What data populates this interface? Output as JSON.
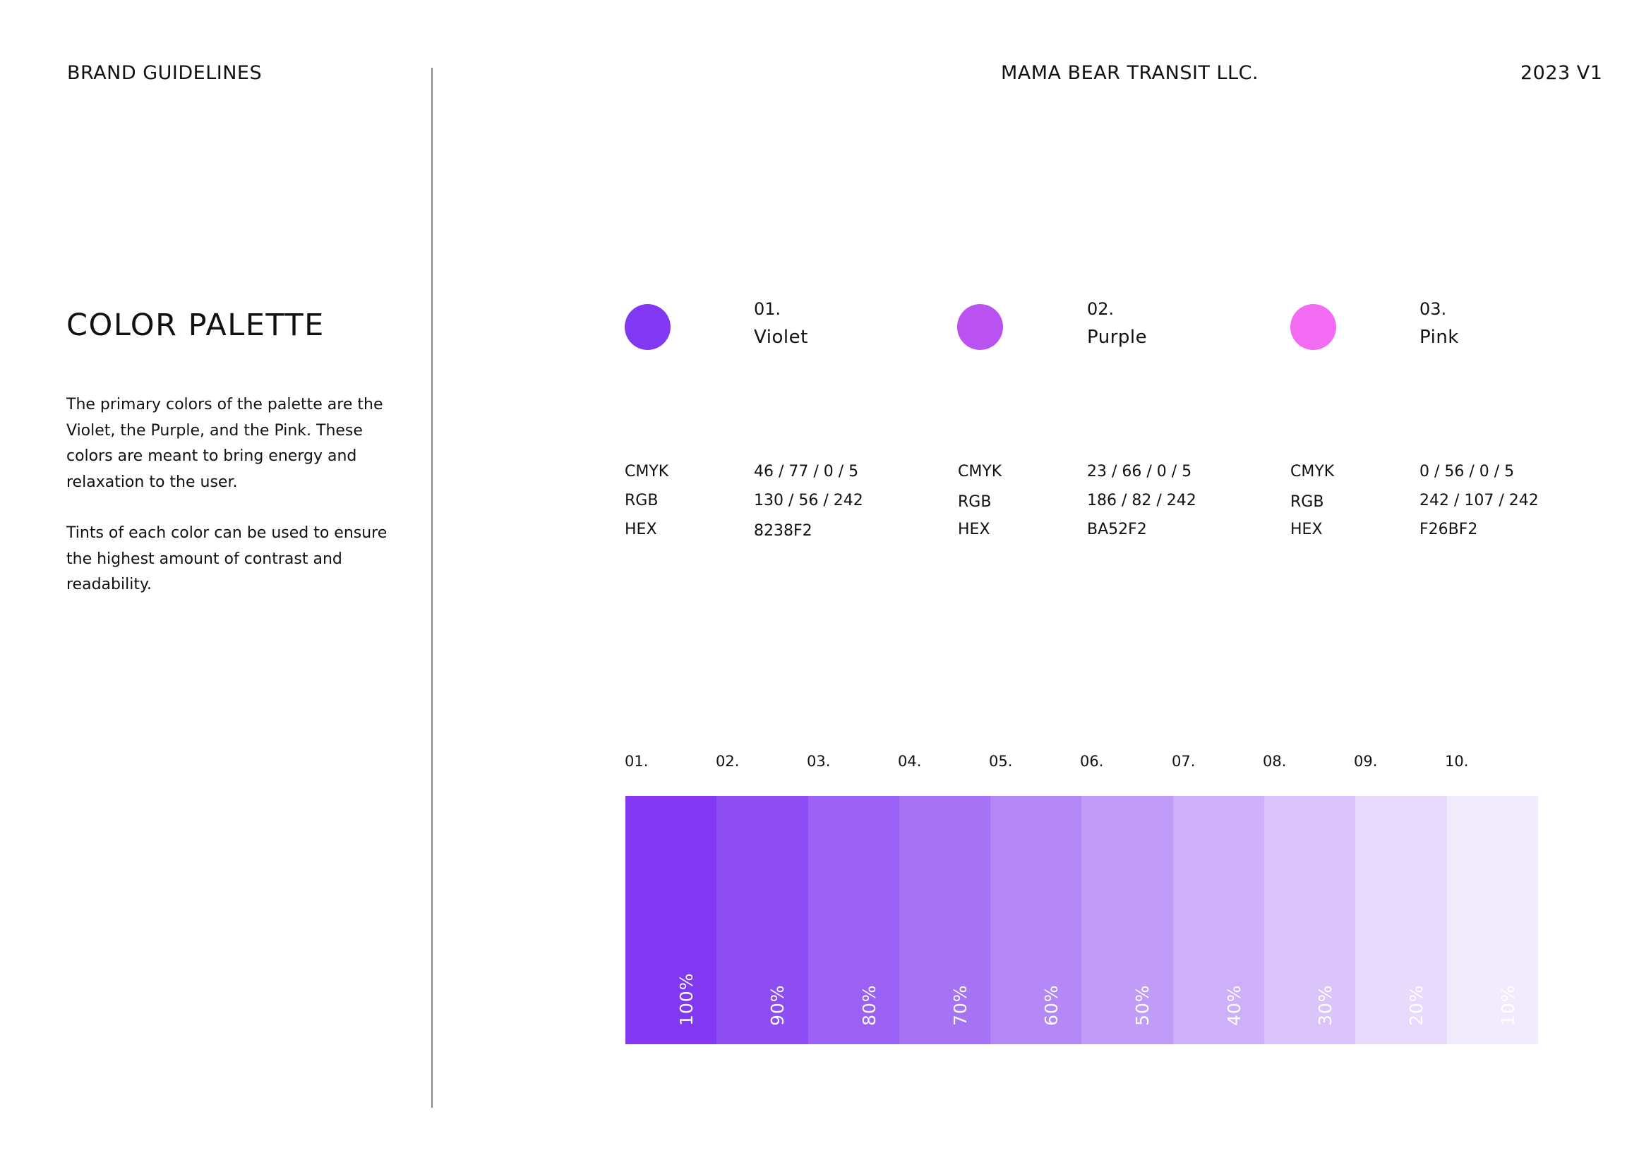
{
  "header": {
    "doc_label": "BRAND GUIDELINES",
    "company": "MAMA BEAR TRANSIT LLC.",
    "version": "2023 V1"
  },
  "intro": {
    "title": "COLOR PALETTE",
    "paragraph_1": "The primary colors of the palette are the Violet, the Purple, and the Pink. These colors are meant to bring energy and relaxation to the user.",
    "paragraph_2": "Tints of each color can be used to ensure the highest amount of contrast and readability."
  },
  "colors": [
    {
      "number": "01.",
      "name": "Violet",
      "swatch": "#8238F2",
      "cmyk_label": "CMYK",
      "cmyk": "46 / 77 / 0 / 5",
      "rgb_label": "RGB",
      "rgb": "130 / 56 / 242",
      "hex_label": "HEX",
      "hex": "8238F2"
    },
    {
      "number": "02.",
      "name": "Purple",
      "swatch": "#BA52F2",
      "cmyk_label": "CMYK",
      "cmyk": "23 / 66 / 0 / 5",
      "rgb_label": "RGB",
      "rgb": "186 / 82 / 242",
      "hex_label": "HEX",
      "hex": "BA52F2"
    },
    {
      "number": "03.",
      "name": "Pink",
      "swatch": "#F26BF2",
      "cmyk_label": "CMYK",
      "cmyk": "0 / 56 / 0 / 5",
      "rgb_label": "RGB",
      "rgb": "242 / 107 / 242",
      "hex_label": "HEX",
      "hex": "F26BF2"
    }
  ],
  "tints": {
    "labels": [
      "01.",
      "02.",
      "03.",
      "04.",
      "05.",
      "06.",
      "07.",
      "08.",
      "09.",
      "10."
    ],
    "percents": [
      "100%",
      "90%",
      "80%",
      "70%",
      "60%",
      "50%",
      "40%",
      "30%",
      "20%",
      "10%"
    ],
    "fills": [
      "#8238F2",
      "#8E4DF3",
      "#9A61F4",
      "#A673F5",
      "#B388F6",
      "#C09CF8",
      "#CDB0F9",
      "#DAC4FA",
      "#E7DAFC",
      "#F2EAFD"
    ]
  }
}
